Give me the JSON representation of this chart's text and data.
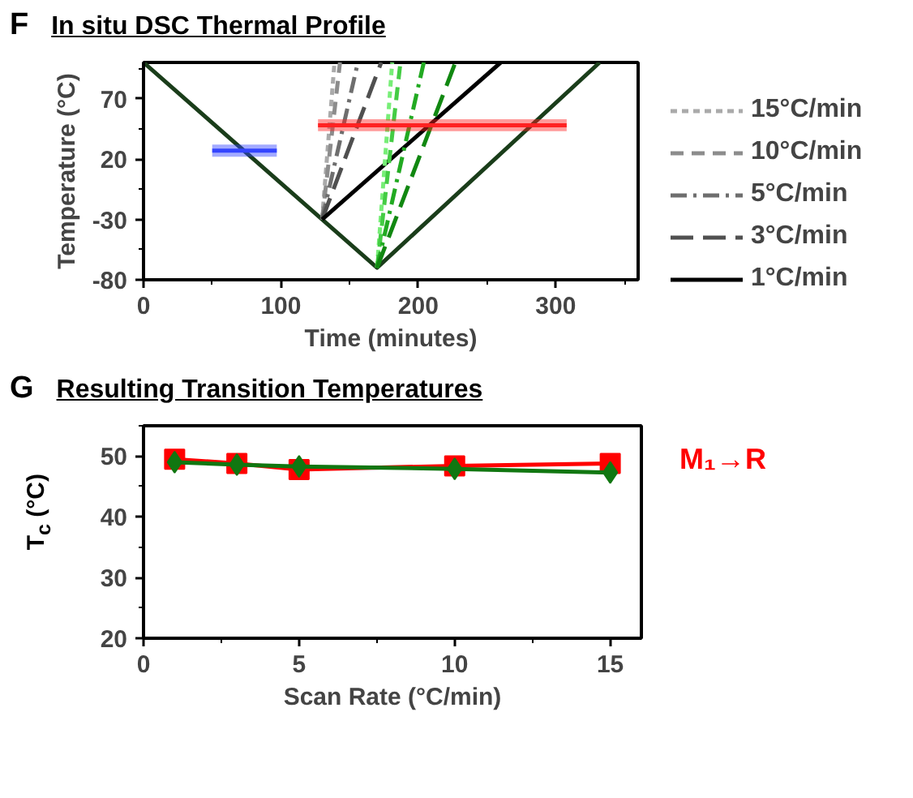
{
  "chart_data": [
    {
      "type": "line",
      "title": "In situ DSC Thermal Profile",
      "annotations": [
        "F"
      ],
      "xlabel": "Time (minutes)",
      "ylabel": "Temperature (°C)",
      "xlim": [
        0,
        360
      ],
      "ylim": [
        -80,
        100
      ],
      "xticks": [
        0,
        100,
        200,
        300
      ],
      "yticks": [
        -80,
        -30,
        20,
        70
      ],
      "grid": false,
      "legend": "right",
      "series": [
        {
          "color": "#1a3d1a",
          "x": [
            0,
            170,
            332
          ],
          "values": [
            100,
            -70,
            100
          ],
          "line_style": "solid"
        },
        {
          "name": "15°C/min",
          "color": "#aaaaaa",
          "x": [
            130,
            139
          ],
          "values": [
            -30,
            100
          ],
          "line_style": "dotted"
        },
        {
          "name": "10°C/min",
          "color": "#8c8c8c",
          "x": [
            130,
            143
          ],
          "values": [
            -30,
            100
          ],
          "line_style": "dashed"
        },
        {
          "name": "5°C/min",
          "color": "#6e6e6e",
          "x": [
            130,
            156
          ],
          "values": [
            -30,
            100
          ],
          "line_style": "dashdot"
        },
        {
          "name": "3°C/min",
          "color": "#505050",
          "x": [
            130,
            173
          ],
          "values": [
            -30,
            100
          ],
          "line_style": "longdash"
        },
        {
          "name": "1°C/min",
          "color": "#000000",
          "x": [
            130,
            260
          ],
          "values": [
            -30,
            100
          ],
          "line_style": "solid"
        },
        {
          "color": "#77ee77",
          "x": [
            170,
            181
          ],
          "values": [
            -70,
            100
          ],
          "line_style": "dotted"
        },
        {
          "color": "#44cc44",
          "x": [
            170,
            187
          ],
          "values": [
            -70,
            100
          ],
          "line_style": "dashed"
        },
        {
          "color": "#22aa22",
          "x": [
            170,
            204
          ],
          "values": [
            -70,
            100
          ],
          "line_style": "dashdot"
        },
        {
          "color": "#118811",
          "x": [
            170,
            227
          ],
          "values": [
            -70,
            100
          ],
          "line_style": "longdash"
        },
        {
          "color": "#3344ff",
          "x": [
            50,
            97
          ],
          "values": [
            27,
            27
          ],
          "lower": [
            22,
            22
          ],
          "upper": [
            32,
            32
          ],
          "line_style": "solid"
        },
        {
          "color": "#ff2222",
          "x": [
            127,
            308
          ],
          "values": [
            48,
            48
          ],
          "lower": [
            43,
            43
          ],
          "upper": [
            53,
            53
          ],
          "line_style": "solid"
        }
      ]
    },
    {
      "type": "line",
      "title": "Resulting Transition Temperatures",
      "annotations": [
        "G"
      ],
      "xlabel": "Scan Rate (°C/min)",
      "ylabel": "T$_{c}$ (°C)",
      "xlim": [
        0,
        16
      ],
      "ylim": [
        20,
        55
      ],
      "xticks": [
        0,
        5,
        10,
        15
      ],
      "yticks": [
        20,
        30,
        40,
        50
      ],
      "grid": false,
      "legend": false,
      "series": [
        {
          "name": "M₁→R",
          "color": "#ff0000",
          "x": [
            1,
            3,
            5,
            10,
            15
          ],
          "values": [
            49.5,
            48.8,
            47.8,
            48.4,
            48.8
          ],
          "marker": "square"
        },
        {
          "color": "#117711",
          "x": [
            1,
            3,
            5,
            10,
            15
          ],
          "values": [
            49.0,
            48.6,
            48.3,
            47.9,
            47.3
          ],
          "marker": "diamond"
        }
      ]
    }
  ]
}
